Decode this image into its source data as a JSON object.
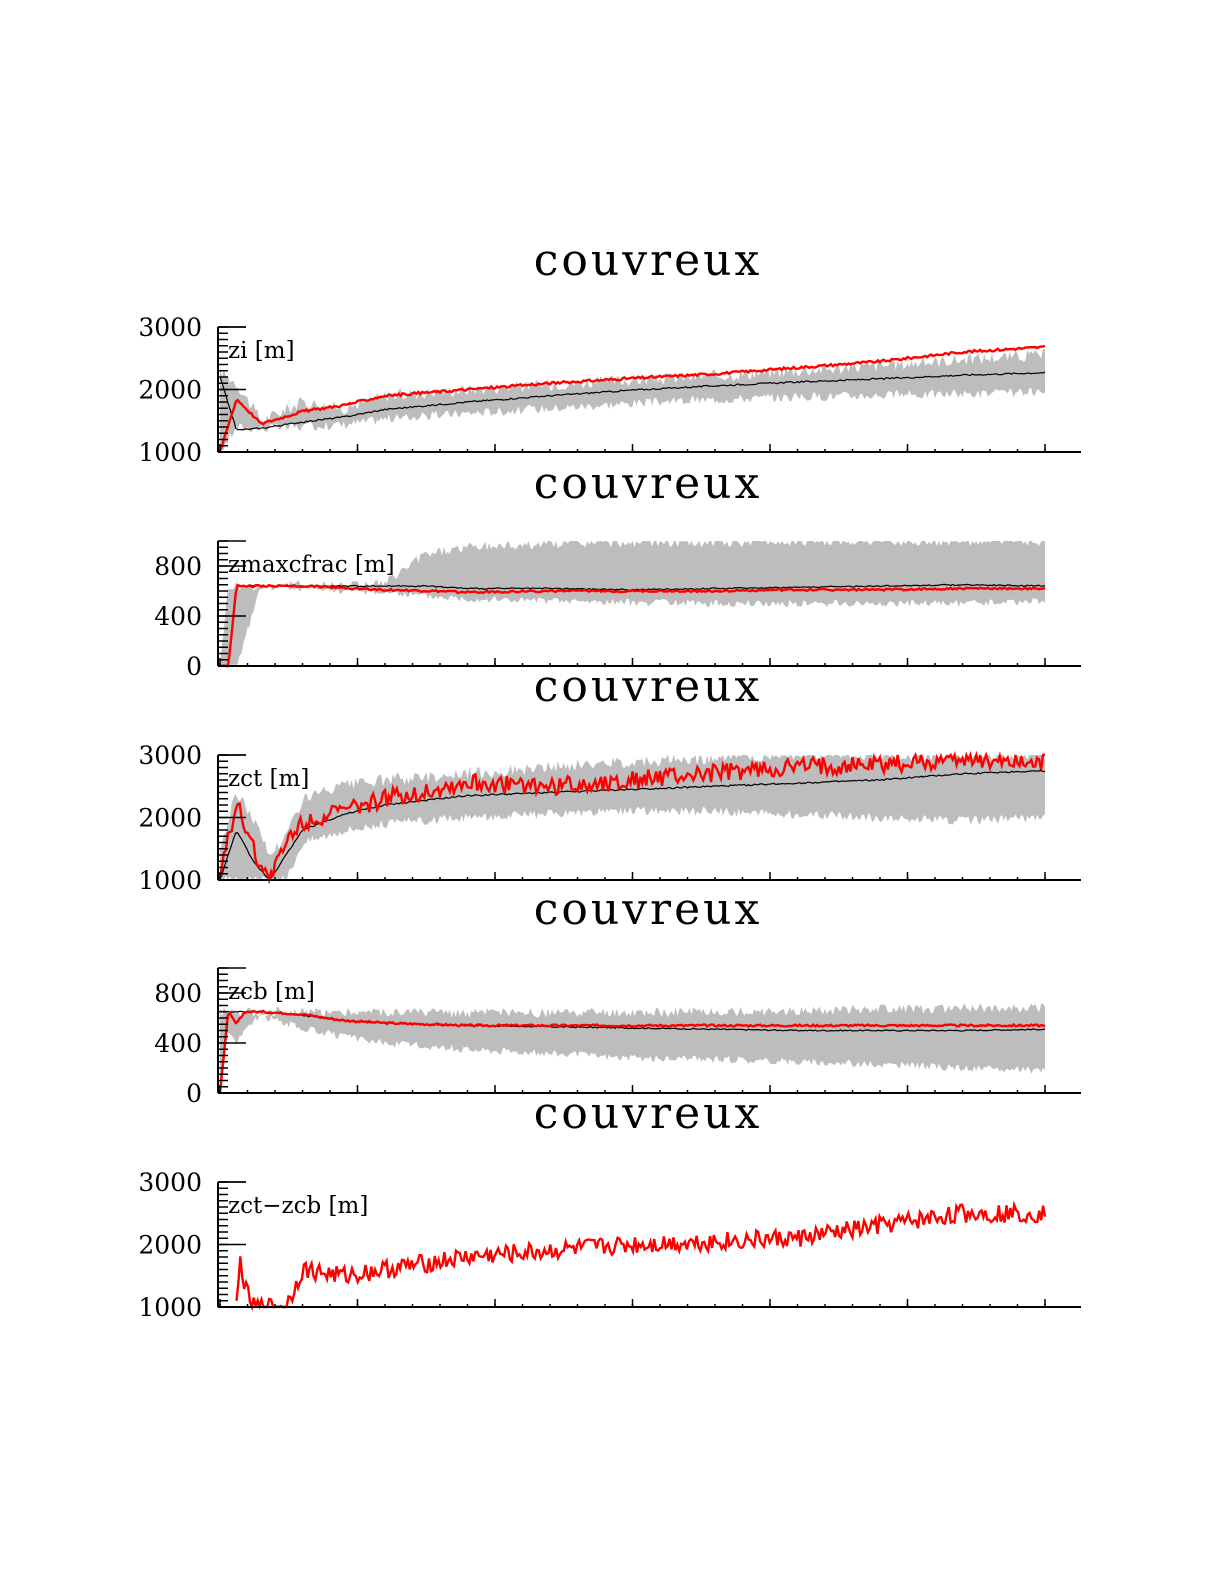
{
  "chart_data": [
    {
      "type": "line",
      "title": "couvreux",
      "label": "zi [m]",
      "ylim": [
        1000,
        3000
      ],
      "ytick_labels": [
        "1000",
        "2000",
        "3000"
      ],
      "colors": {
        "band": "#bdbdbd",
        "mean": "#000000",
        "ref": "#ff0000"
      },
      "x": [
        0,
        0.02,
        0.05,
        0.1,
        0.15,
        0.2,
        0.3,
        0.4,
        0.5,
        0.6,
        0.7,
        0.8,
        0.9,
        1.0
      ],
      "series": [
        {
          "role": "band_upper",
          "values": [
            2300,
            2100,
            1500,
            1800,
            1700,
            1900,
            2000,
            2080,
            2150,
            2220,
            2300,
            2380,
            2480,
            2560
          ]
        },
        {
          "role": "band_lower",
          "values": [
            1000,
            1400,
            1380,
            1400,
            1440,
            1530,
            1620,
            1700,
            1780,
            1840,
            1880,
            1910,
            1930,
            1950
          ]
        },
        {
          "role": "mean",
          "values": [
            2200,
            1350,
            1380,
            1480,
            1560,
            1680,
            1800,
            1900,
            1990,
            2060,
            2120,
            2170,
            2230,
            2270
          ]
        },
        {
          "role": "ref",
          "values": [
            1000,
            1850,
            1450,
            1650,
            1750,
            1900,
            2000,
            2100,
            2180,
            2250,
            2350,
            2450,
            2600,
            2680
          ]
        }
      ]
    },
    {
      "type": "line",
      "title": "couvreux",
      "label": "zmaxcfrac [m]",
      "ylim": [
        0,
        1000
      ],
      "ytick_labels": [
        "0",
        "400",
        "800"
      ],
      "colors": {
        "band": "#bdbdbd",
        "mean": "#000000",
        "ref": "#ff0000"
      },
      "x": [
        0,
        0.01,
        0.02,
        0.05,
        0.1,
        0.2,
        0.25,
        0.3,
        0.4,
        0.5,
        0.6,
        0.7,
        0.8,
        0.9,
        1.0
      ],
      "series": [
        {
          "role": "band_upper",
          "values": [
            0,
            640,
            640,
            640,
            650,
            660,
            900,
            950,
            980,
            990,
            990,
            1000,
            1000,
            1000,
            1000
          ]
        },
        {
          "role": "band_lower",
          "values": [
            0,
            0,
            0,
            640,
            620,
            590,
            560,
            540,
            520,
            510,
            500,
            500,
            500,
            500,
            520
          ]
        },
        {
          "role": "mean",
          "values": [
            0,
            0,
            640,
            640,
            640,
            640,
            640,
            620,
            620,
            610,
            620,
            630,
            640,
            650,
            640
          ]
        },
        {
          "role": "ref",
          "values": [
            0,
            0,
            640,
            640,
            640,
            610,
            600,
            590,
            600,
            600,
            600,
            610,
            610,
            620,
            620
          ]
        }
      ]
    },
    {
      "type": "line",
      "title": "couvreux",
      "label": "zct [m]",
      "ylim": [
        1000,
        3000
      ],
      "ytick_labels": [
        "1000",
        "2000",
        "3000"
      ],
      "colors": {
        "band": "#bdbdbd",
        "mean": "#000000",
        "ref": "#ff0000"
      },
      "x": [
        0,
        0.02,
        0.04,
        0.06,
        0.08,
        0.1,
        0.15,
        0.2,
        0.3,
        0.4,
        0.5,
        0.6,
        0.7,
        0.8,
        0.9,
        1.0
      ],
      "series": [
        {
          "role": "band_upper",
          "values": [
            1500,
            2400,
            2000,
            1400,
            1700,
            2300,
            2500,
            2600,
            2700,
            2800,
            2900,
            2950,
            3000,
            3000,
            3000,
            3000
          ]
        },
        {
          "role": "band_lower",
          "values": [
            1000,
            1000,
            1000,
            1000,
            1000,
            1600,
            1800,
            1900,
            2000,
            2050,
            2100,
            2100,
            2050,
            2000,
            1950,
            2000
          ]
        },
        {
          "role": "mean",
          "values": [
            1000,
            1800,
            1300,
            1000,
            1400,
            1800,
            2050,
            2200,
            2350,
            2400,
            2450,
            2500,
            2550,
            2600,
            2700,
            2750
          ]
        },
        {
          "role": "ref",
          "values": [
            1000,
            2300,
            1500,
            1000,
            1600,
            1950,
            2100,
            2300,
            2550,
            2500,
            2600,
            2700,
            2800,
            2850,
            2950,
            2900
          ]
        }
      ]
    },
    {
      "type": "line",
      "title": "couvreux",
      "label": "zcb [m]",
      "ylim": [
        0,
        1000
      ],
      "ytick_labels": [
        "0",
        "400",
        "800"
      ],
      "colors": {
        "band": "#bdbdbd",
        "mean": "#000000",
        "ref": "#ff0000"
      },
      "x": [
        0,
        0.01,
        0.02,
        0.03,
        0.05,
        0.1,
        0.15,
        0.2,
        0.3,
        0.4,
        0.5,
        0.6,
        0.7,
        0.8,
        0.9,
        1.0
      ],
      "series": [
        {
          "role": "band_upper",
          "values": [
            650,
            650,
            650,
            650,
            650,
            650,
            650,
            650,
            640,
            640,
            640,
            650,
            660,
            670,
            680,
            680
          ]
        },
        {
          "role": "band_lower",
          "values": [
            0,
            500,
            400,
            500,
            620,
            520,
            450,
            400,
            350,
            320,
            280,
            270,
            250,
            230,
            200,
            180
          ]
        },
        {
          "role": "mean",
          "values": [
            650,
            650,
            650,
            650,
            650,
            620,
            580,
            560,
            540,
            530,
            520,
            510,
            500,
            500,
            500,
            510
          ]
        },
        {
          "role": "ref",
          "values": [
            0,
            650,
            550,
            650,
            650,
            630,
            580,
            560,
            540,
            540,
            540,
            540,
            540,
            540,
            540,
            540
          ]
        }
      ]
    },
    {
      "type": "line",
      "title": "couvreux",
      "label": "zct−zcb [m]",
      "ylim": [
        1000,
        3000
      ],
      "ytick_labels": [
        "1000",
        "2000",
        "3000"
      ],
      "colors": {
        "ref": "#ff0000"
      },
      "x": [
        0.02,
        0.025,
        0.03,
        0.04,
        0.08,
        0.1,
        0.15,
        0.2,
        0.3,
        0.4,
        0.5,
        0.6,
        0.7,
        0.8,
        0.9,
        1.0
      ],
      "series": [
        {
          "role": "ref",
          "values": [
            1000,
            1800,
            1300,
            1000,
            1000,
            1600,
            1500,
            1600,
            1800,
            1900,
            2000,
            2050,
            2100,
            2300,
            2500,
            2500
          ]
        }
      ]
    }
  ]
}
